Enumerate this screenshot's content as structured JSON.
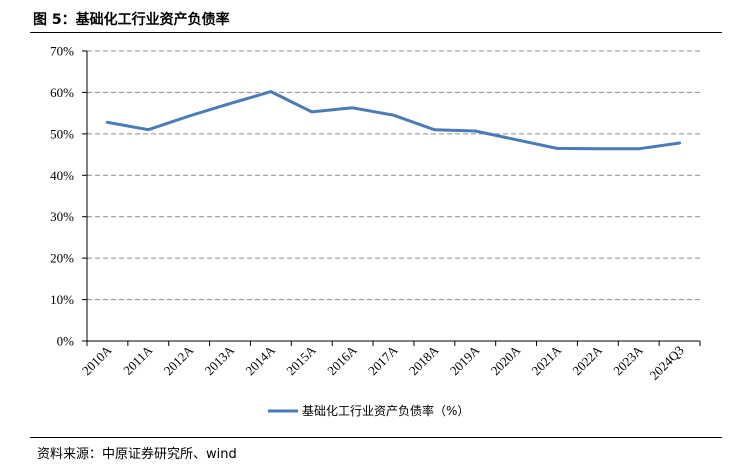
{
  "figure_title": "图 5：基础化工行业资产负债率",
  "source_text": "资料来源：中原证券研究所、wind",
  "chart_data": {
    "type": "line",
    "categories": [
      "2010A",
      "2011A",
      "2012A",
      "2013A",
      "2014A",
      "2015A",
      "2016A",
      "2017A",
      "2018A",
      "2019A",
      "2020A",
      "2021A",
      "2022A",
      "2023A",
      "2024Q3"
    ],
    "series": [
      {
        "name": "基础化工行业资产负债率（%）",
        "values": [
          52.8,
          51.0,
          54.3,
          57.3,
          60.2,
          55.3,
          56.3,
          54.5,
          51.0,
          50.7,
          48.6,
          46.5,
          46.4,
          46.4,
          47.8
        ],
        "color": "#4a7ab8"
      }
    ],
    "yticks": [
      "0%",
      "10%",
      "20%",
      "30%",
      "40%",
      "50%",
      "60%",
      "70%"
    ],
    "ylim": [
      0,
      70
    ],
    "grid": true,
    "legend_position": "bottom"
  }
}
